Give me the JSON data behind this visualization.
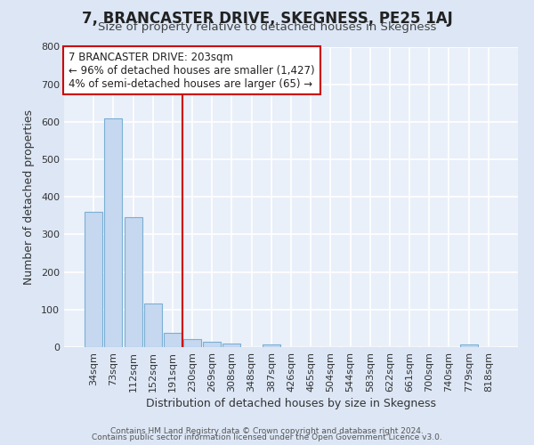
{
  "title": "7, BRANCASTER DRIVE, SKEGNESS, PE25 1AJ",
  "subtitle": "Size of property relative to detached houses in Skegness",
  "xlabel": "Distribution of detached houses by size in Skegness",
  "ylabel": "Number of detached properties",
  "bar_labels": [
    "34sqm",
    "73sqm",
    "112sqm",
    "152sqm",
    "191sqm",
    "230sqm",
    "269sqm",
    "308sqm",
    "348sqm",
    "387sqm",
    "426sqm",
    "465sqm",
    "504sqm",
    "544sqm",
    "583sqm",
    "622sqm",
    "661sqm",
    "700sqm",
    "740sqm",
    "779sqm",
    "818sqm"
  ],
  "bar_values": [
    360,
    610,
    345,
    115,
    38,
    22,
    14,
    10,
    0,
    8,
    0,
    0,
    0,
    0,
    0,
    0,
    0,
    0,
    0,
    8,
    0
  ],
  "bar_color": "#c5d8f0",
  "bar_edge_color": "#7aafd4",
  "vline_x": 4.5,
  "vline_color": "#cc0000",
  "annotation_text": "7 BRANCASTER DRIVE: 203sqm\n← 96% of detached houses are smaller (1,427)\n4% of semi-detached houses are larger (65) →",
  "annotation_box_color": "#ffffff",
  "annotation_box_edge": "#cc0000",
  "ylim": [
    0,
    800
  ],
  "yticks": [
    0,
    100,
    200,
    300,
    400,
    500,
    600,
    700,
    800
  ],
  "footer1": "Contains HM Land Registry data © Crown copyright and database right 2024.",
  "footer2": "Contains public sector information licensed under the Open Government Licence v3.0.",
  "bg_color": "#dce6f5",
  "plot_bg_color": "#eaf0f9",
  "grid_color": "#ffffff",
  "title_fontsize": 12,
  "subtitle_fontsize": 9.5,
  "axis_label_fontsize": 9,
  "tick_fontsize": 8,
  "annotation_fontsize": 8.5,
  "footer_fontsize": 6.5
}
